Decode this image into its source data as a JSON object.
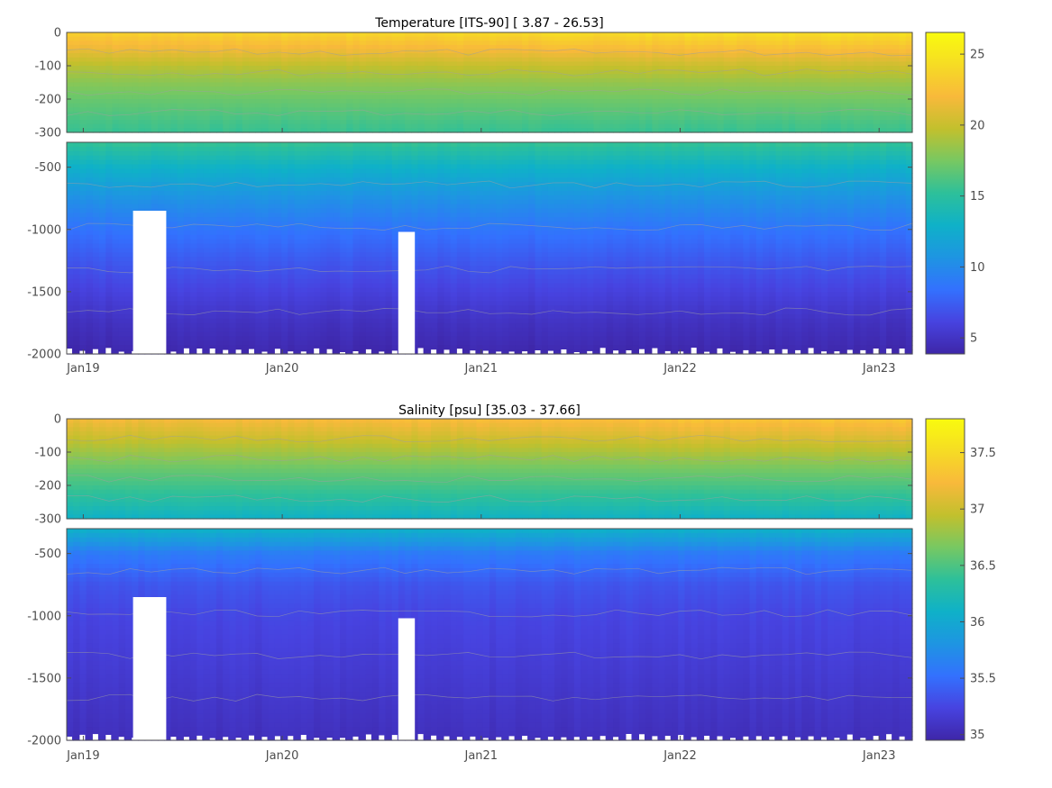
{
  "chart_data": [
    {
      "type": "heatmap",
      "title": "Temperature [ITS-90]   [ 3.87 - 26.53]",
      "x_ticks": [
        "Jan19",
        "Jan20",
        "Jan21",
        "Jan22",
        "Jan23"
      ],
      "x_range": [
        "2018-12",
        "2023-03"
      ],
      "y_upper": {
        "range": [
          -300,
          0
        ],
        "ticks": [
          "0",
          "-100",
          "-200",
          "-300"
        ]
      },
      "y_lower": {
        "range": [
          -2000,
          -300
        ],
        "ticks": [
          "-500",
          "-1000",
          "-1500",
          "-2000"
        ]
      },
      "colorbar": {
        "range": [
          3.87,
          26.53
        ],
        "ticks": [
          "25",
          "20",
          "15",
          "10",
          "5"
        ]
      },
      "colormap": [
        "#3e26a8",
        "#4743e0",
        "#3371fe",
        "#1e95e2",
        "#0fb1c8",
        "#2dc09a",
        "#77c862",
        "#c2c02d",
        "#f8b93b",
        "#f6dc24",
        "#f9fb0e"
      ],
      "profile": {
        "depth": [
          0,
          -50,
          -100,
          -150,
          -200,
          -250,
          -300,
          -500,
          -750,
          -1000,
          -1250,
          -1500,
          -1750,
          -2000
        ],
        "value": [
          23.5,
          21.5,
          19.5,
          18.0,
          17.0,
          16.2,
          15.5,
          13.0,
          10.5,
          8.6,
          7.2,
          6.0,
          4.8,
          4.0
        ]
      },
      "gaps": [
        {
          "start": "2019-04",
          "end": "2019-05",
          "top": -850
        },
        {
          "start": "2020-08",
          "end": "2020-08",
          "top": -1020
        }
      ]
    },
    {
      "type": "heatmap",
      "title": "Salinity [psu]   [35.03 - 37.66]",
      "x_ticks": [
        "Jan19",
        "Jan20",
        "Jan21",
        "Jan22",
        "Jan23"
      ],
      "x_range": [
        "2018-12",
        "2023-03"
      ],
      "y_upper": {
        "range": [
          -300,
          0
        ],
        "ticks": [
          "0",
          "-100",
          "-200",
          "-300"
        ]
      },
      "y_lower": {
        "range": [
          -2000,
          -300
        ],
        "ticks": [
          "-500",
          "-1000",
          "-1500",
          "-2000"
        ]
      },
      "colorbar": {
        "range": [
          34.95,
          37.8
        ],
        "ticks": [
          "37.5",
          "37",
          "36.5",
          "36",
          "35.5",
          "35"
        ]
      },
      "colormap": [
        "#3e26a8",
        "#4743e0",
        "#3371fe",
        "#1e95e2",
        "#0fb1c8",
        "#2dc09a",
        "#77c862",
        "#c2c02d",
        "#f8b93b",
        "#f6dc24",
        "#f9fb0e"
      ],
      "profile": {
        "depth": [
          0,
          -50,
          -100,
          -150,
          -200,
          -250,
          -300,
          -500,
          -750,
          -1000,
          -1250,
          -1500,
          -1750,
          -2000
        ],
        "value": [
          37.2,
          37.0,
          36.8,
          36.6,
          36.45,
          36.3,
          36.1,
          35.6,
          35.35,
          35.25,
          35.2,
          35.15,
          35.1,
          35.05
        ]
      },
      "gaps": [
        {
          "start": "2019-04",
          "end": "2019-05",
          "top": -850
        },
        {
          "start": "2020-08",
          "end": "2020-08",
          "top": -1020
        }
      ]
    }
  ]
}
